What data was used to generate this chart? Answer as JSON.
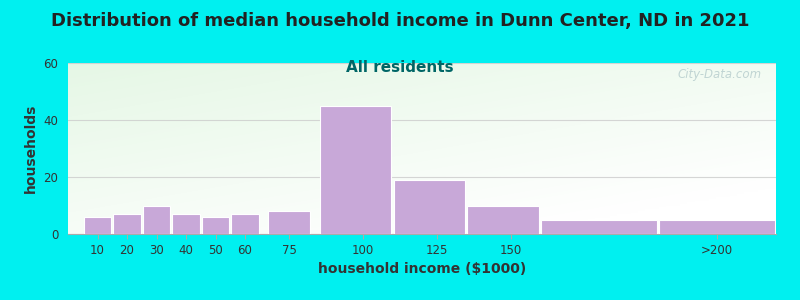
{
  "title": "Distribution of median household income in Dunn Center, ND in 2021",
  "subtitle": "All residents",
  "xlabel": "household income ($1000)",
  "ylabel": "households",
  "bar_heights": [
    6,
    7,
    10,
    7,
    6,
    7,
    8,
    45,
    19,
    10,
    5,
    5
  ],
  "bin_lefts": [
    5,
    15,
    25,
    35,
    45,
    55,
    67.5,
    85,
    110,
    135,
    160,
    200
  ],
  "bin_rights": [
    15,
    25,
    35,
    45,
    55,
    65,
    82.5,
    110,
    135,
    160,
    200,
    240
  ],
  "bar_color": "#c8a8d8",
  "bar_edge_color": "#ffffff",
  "ylim": [
    0,
    60
  ],
  "yticks": [
    0,
    20,
    40,
    60
  ],
  "xtick_positions": [
    10,
    20,
    30,
    40,
    50,
    60,
    75,
    100,
    125,
    150,
    220
  ],
  "xtick_labels": [
    "10",
    "20",
    "30",
    "40",
    "50",
    "60",
    "75",
    "100",
    "125",
    "150",
    ">200"
  ],
  "xlim": [
    0,
    240
  ],
  "background_outer": "#00f0f0",
  "title_fontsize": 13,
  "title_color": "#222222",
  "subtitle_fontsize": 11,
  "subtitle_color": "#006666",
  "axis_label_fontsize": 10,
  "axis_label_color": "#333333",
  "tick_fontsize": 8.5,
  "watermark_text": "City-Data.com",
  "watermark_color": "#b8cece",
  "grid_color": "#cccccc",
  "grid_alpha": 0.8
}
